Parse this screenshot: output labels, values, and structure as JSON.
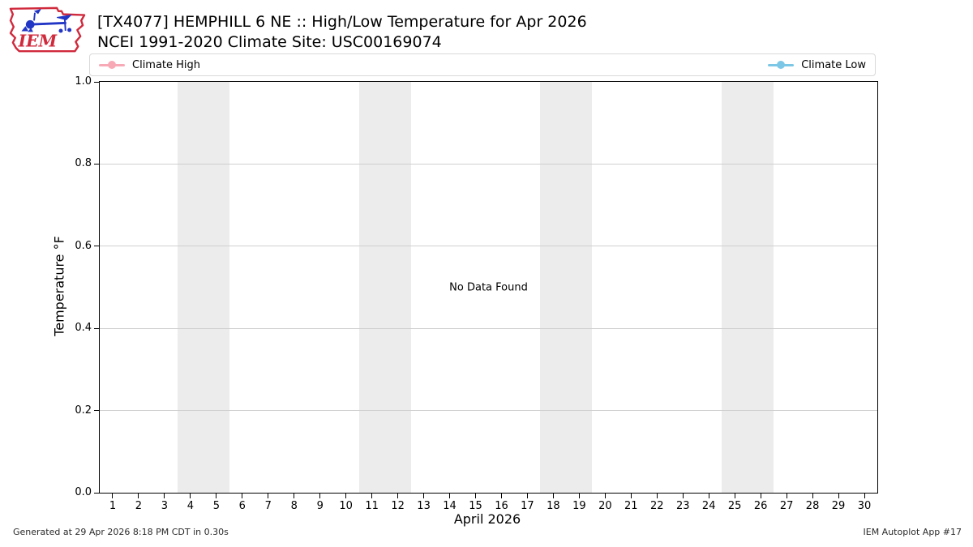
{
  "header": {
    "logo_text": "IEM",
    "title_line1": "[TX4077] HEMPHILL 6 NE :: High/Low Temperature for Apr 2026",
    "title_line2": "NCEI 1991-2020 Climate Site: USC00169074"
  },
  "legend": {
    "items": [
      {
        "label": "Climate High",
        "color": "#f8a9b6"
      },
      {
        "label": "Climate Low",
        "color": "#7cc7e6"
      }
    ]
  },
  "chart_data": {
    "type": "line",
    "title": "[TX4077] HEMPHILL 6 NE :: High/Low Temperature for Apr 2026",
    "subtitle": "NCEI 1991-2020 Climate Site: USC00169074",
    "xlabel": "April 2026",
    "ylabel": "Temperature °F",
    "xlim": [
      0.5,
      30.5
    ],
    "ylim": [
      0.0,
      1.0
    ],
    "x_ticks": [
      1,
      2,
      3,
      4,
      5,
      6,
      7,
      8,
      9,
      10,
      11,
      12,
      13,
      14,
      15,
      16,
      17,
      18,
      19,
      20,
      21,
      22,
      23,
      24,
      25,
      26,
      27,
      28,
      29,
      30
    ],
    "y_ticks": [
      {
        "value": 0.0,
        "label": "0.0"
      },
      {
        "value": 0.2,
        "label": "0.2"
      },
      {
        "value": 0.4,
        "label": "0.4"
      },
      {
        "value": 0.6,
        "label": "0.6"
      },
      {
        "value": 0.8,
        "label": "0.8"
      },
      {
        "value": 1.0,
        "label": "1.0"
      }
    ],
    "grid": true,
    "legend_position": "top",
    "weekend_bands": [
      [
        3.5,
        5.5
      ],
      [
        10.5,
        12.5
      ],
      [
        17.5,
        19.5
      ],
      [
        24.5,
        26.5
      ]
    ],
    "band_color": "#ececec",
    "series": [
      {
        "name": "Climate High",
        "color": "#f8a9b6",
        "x": [],
        "y": []
      },
      {
        "name": "Climate Low",
        "color": "#7cc7e6",
        "x": [],
        "y": []
      }
    ],
    "no_data_message": "No Data Found"
  },
  "footer": {
    "generated": "Generated at 29 Apr 2026 8:18 PM CDT in 0.30s",
    "app_label": "IEM Autoplot App #17"
  }
}
